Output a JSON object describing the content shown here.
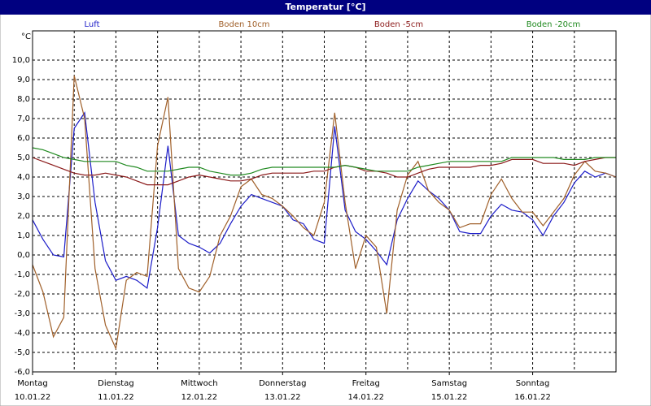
{
  "chart_data": {
    "type": "line",
    "title": "Temperatur [°C]",
    "y_unit": "°C",
    "x": [
      0,
      3,
      6,
      9,
      12,
      15,
      18,
      21,
      24,
      27,
      30,
      33,
      36,
      39,
      42,
      45,
      48,
      51,
      54,
      57,
      60,
      63,
      66,
      69,
      72,
      75,
      78,
      81,
      84,
      87,
      90,
      93,
      96,
      99,
      102,
      105,
      108,
      111,
      114,
      117,
      120,
      123,
      126,
      129,
      132,
      135,
      138,
      141,
      144,
      147,
      150,
      153,
      156,
      159,
      162,
      165,
      168
    ],
    "xlim": [
      0,
      168
    ],
    "xticks": [
      {
        "value": 0,
        "label": "Montag"
      },
      {
        "value": 24,
        "label": "Dienstag"
      },
      {
        "value": 48,
        "label": "Mittwoch"
      },
      {
        "value": 72,
        "label": "Donnerstag"
      },
      {
        "value": 96,
        "label": "Freitag"
      },
      {
        "value": 120,
        "label": "Samstag"
      },
      {
        "value": 144,
        "label": "Sonntag"
      }
    ],
    "xtick_dates": [
      "10.01.22",
      "11.01.22",
      "12.01.22",
      "13.01.22",
      "14.01.22",
      "15.01.22",
      "16.01.22"
    ],
    "xgrid": [
      12,
      24,
      36,
      48,
      60,
      72,
      84,
      96,
      108,
      120,
      132,
      144,
      156
    ],
    "ylim": [
      -6,
      11.5
    ],
    "yticks": [
      {
        "value": -6,
        "label": "-6,0"
      },
      {
        "value": -5,
        "label": "-5,0"
      },
      {
        "value": -4,
        "label": "-4,0"
      },
      {
        "value": -3,
        "label": "-3,0"
      },
      {
        "value": -2,
        "label": "-2,0"
      },
      {
        "value": -1,
        "label": "-1,0"
      },
      {
        "value": 0,
        "label": "0,0"
      },
      {
        "value": 1,
        "label": "1,0"
      },
      {
        "value": 2,
        "label": "2,0"
      },
      {
        "value": 3,
        "label": "3,0"
      },
      {
        "value": 4,
        "label": "4,0"
      },
      {
        "value": 5,
        "label": "5,0"
      },
      {
        "value": 6,
        "label": "6,0"
      },
      {
        "value": 7,
        "label": "7,0"
      },
      {
        "value": 8,
        "label": "8,0"
      },
      {
        "value": 9,
        "label": "9,0"
      },
      {
        "value": 10,
        "label": "10,0"
      }
    ],
    "grid": true,
    "series": [
      {
        "name": "Luft",
        "color": "#1c1cc8",
        "values": [
          1.8,
          0.8,
          0,
          -0.1,
          6.5,
          7.3,
          2.7,
          -0.3,
          -1.3,
          -1.1,
          -1.3,
          -1.7,
          1.4,
          5.6,
          1.0,
          0.6,
          0.4,
          0.1,
          0.6,
          1.6,
          2.5,
          3.1,
          2.9,
          2.7,
          2.5,
          1.8,
          1.6,
          0.8,
          0.6,
          6.6,
          2.3,
          1.2,
          0.8,
          0.2,
          -0.5,
          1.8,
          2.9,
          3.8,
          3.3,
          2.9,
          2.3,
          1.2,
          1.1,
          1.1,
          2.0,
          2.6,
          2.3,
          2.2,
          1.8,
          1.0,
          2.0,
          2.7,
          3.7,
          4.3,
          4.0,
          4.2,
          4.0
        ]
      },
      {
        "name": "Boden 10cm",
        "color": "#a0602a",
        "values": [
          -0.5,
          -1.9,
          -4.2,
          -3.2,
          9.2,
          7.0,
          -0.7,
          -3.6,
          -4.8,
          -1.3,
          -0.9,
          -1.1,
          5.6,
          8.1,
          -0.7,
          -1.7,
          -1.9,
          -1.1,
          1.0,
          2.0,
          3.5,
          3.9,
          3.1,
          2.9,
          2.5,
          2.0,
          1.4,
          1.0,
          2.7,
          7.3,
          2.7,
          -0.7,
          1.0,
          0.4,
          -3.0,
          2.3,
          4.1,
          4.8,
          3.3,
          2.7,
          2.3,
          1.4,
          1.6,
          1.6,
          3.1,
          3.9,
          2.9,
          2.2,
          2.2,
          1.5,
          2.2,
          2.9,
          4.1,
          4.8,
          4.3,
          4.2,
          4.0
        ]
      },
      {
        "name": "Boden -5cm",
        "color": "#8b1a1a",
        "values": [
          5.0,
          4.8,
          4.6,
          4.4,
          4.2,
          4.1,
          4.1,
          4.2,
          4.1,
          4.0,
          3.8,
          3.6,
          3.6,
          3.6,
          3.8,
          4.0,
          4.1,
          4.0,
          3.9,
          3.8,
          3.8,
          3.9,
          4.1,
          4.2,
          4.2,
          4.2,
          4.2,
          4.3,
          4.3,
          4.5,
          4.6,
          4.5,
          4.3,
          4.3,
          4.2,
          4.0,
          4.0,
          4.2,
          4.4,
          4.5,
          4.5,
          4.5,
          4.5,
          4.6,
          4.6,
          4.7,
          4.9,
          4.9,
          4.9,
          4.7,
          4.7,
          4.7,
          4.6,
          4.8,
          4.9,
          5.0,
          5.0
        ]
      },
      {
        "name": "Boden -20cm",
        "color": "#208a20",
        "values": [
          5.5,
          5.4,
          5.2,
          5.0,
          4.9,
          4.8,
          4.8,
          4.8,
          4.8,
          4.6,
          4.5,
          4.3,
          4.3,
          4.3,
          4.4,
          4.5,
          4.5,
          4.3,
          4.2,
          4.1,
          4.1,
          4.2,
          4.4,
          4.5,
          4.5,
          4.5,
          4.5,
          4.5,
          4.5,
          4.5,
          4.6,
          4.5,
          4.4,
          4.3,
          4.3,
          4.3,
          4.3,
          4.5,
          4.6,
          4.7,
          4.8,
          4.8,
          4.8,
          4.8,
          4.8,
          4.8,
          5.0,
          5.0,
          5.0,
          5.0,
          5.0,
          4.9,
          4.9,
          4.9,
          5.0,
          5.0,
          5.0
        ]
      }
    ]
  }
}
